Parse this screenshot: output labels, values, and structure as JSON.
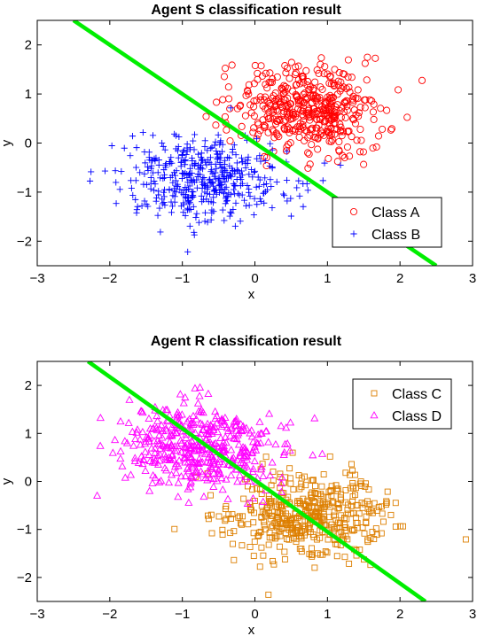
{
  "chart_data": [
    {
      "type": "scatter",
      "title": "Agent S classification result",
      "xlabel": "x",
      "ylabel": "y",
      "xlim": [
        -3,
        3
      ],
      "ylim": [
        -2.5,
        2.5
      ],
      "xticks": [
        -3,
        -2,
        -1,
        0,
        1,
        2,
        3
      ],
      "yticks": [
        -2,
        -1,
        0,
        1,
        2
      ],
      "legend_position": "bottom-right",
      "decision_boundary": {
        "color": "#00ee00",
        "x": [
          -2.5,
          2.5
        ],
        "y": [
          2.5,
          -2.5
        ]
      },
      "series": [
        {
          "name": "Class A",
          "marker": "circle",
          "color": "#ff0000",
          "center": [
            0.7,
            0.7
          ],
          "spread": [
            0.5,
            0.45
          ],
          "count": 450
        },
        {
          "name": "Class B",
          "marker": "plus",
          "color": "#0000ff",
          "center": [
            -0.7,
            -0.7
          ],
          "spread": [
            0.55,
            0.45
          ],
          "count": 450
        }
      ]
    },
    {
      "type": "scatter",
      "title": "Agent R classification result",
      "xlabel": "x",
      "ylabel": "y",
      "xlim": [
        -3,
        3
      ],
      "ylim": [
        -2.5,
        2.5
      ],
      "xticks": [
        -3,
        -2,
        -1,
        0,
        1,
        2,
        3
      ],
      "yticks": [
        -2,
        -1,
        0,
        1,
        2
      ],
      "legend_position": "top-right",
      "decision_boundary": {
        "color": "#00ee00",
        "x": [
          -2.3,
          2.35
        ],
        "y": [
          2.5,
          -2.5
        ]
      },
      "series": [
        {
          "name": "Class C",
          "marker": "square",
          "color": "#dd7f00",
          "center": [
            0.7,
            -0.7
          ],
          "spread": [
            0.55,
            0.45
          ],
          "count": 450
        },
        {
          "name": "Class D",
          "marker": "triangle",
          "color": "#ff00ff",
          "center": [
            -0.8,
            0.7
          ],
          "spread": [
            0.55,
            0.45
          ],
          "count": 450
        }
      ]
    }
  ]
}
